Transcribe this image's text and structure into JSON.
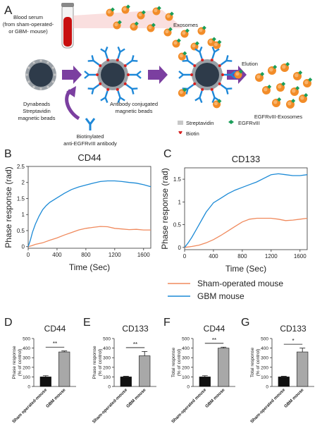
{
  "panel_a": {
    "letter": "A",
    "serum_label": [
      "Blood serum",
      "(from sham-operated-",
      "or GBM- mouse)"
    ],
    "exosomes_label": "Exosomes",
    "beads_label": [
      "Dynabeads",
      "Streptavidin",
      "magnetic beads"
    ],
    "antibody_label": [
      "Biotinylated",
      "anti-EGFRvIII antibody"
    ],
    "conjugated_label": [
      "Antibody conjugated",
      "magnetic beads"
    ],
    "elution_label": "Elution",
    "product_label": "EGFRvIII-Exosomes",
    "legend": {
      "streptavidin": "Streptavidin",
      "egfrviii": "EGFRvIII",
      "biotin": "Biotin"
    },
    "colors": {
      "bead": "#2e3b4a",
      "antibody": "#1e88d8",
      "exosome": "#f28c28",
      "egfr": "#1b9e5a",
      "arrow": "#7b3fa0",
      "biotin": "#d62020",
      "serum": "#c81010"
    }
  },
  "chart_data": [
    {
      "type": "line",
      "letter": "B",
      "title": "CD44",
      "xlabel": "Time (Sec)",
      "ylabel": "Phase response (rad)",
      "xlim": [
        0,
        1700
      ],
      "ylim": [
        -0.05,
        2.5
      ],
      "xticks": [
        0,
        400,
        800,
        1200,
        1600
      ],
      "yticks": [
        0,
        0.5,
        1,
        1.5,
        2,
        2.5
      ],
      "series": [
        {
          "name": "Sham-operated mouse",
          "color": "#f08a5d",
          "x": [
            0,
            50,
            100,
            200,
            300,
            400,
            500,
            600,
            700,
            800,
            900,
            1000,
            1100,
            1200,
            1300,
            1400,
            1500,
            1600,
            1700
          ],
          "y": [
            0,
            0.03,
            0.07,
            0.12,
            0.2,
            0.27,
            0.36,
            0.44,
            0.52,
            0.57,
            0.6,
            0.63,
            0.62,
            0.57,
            0.55,
            0.53,
            0.54,
            0.52,
            0.52
          ]
        },
        {
          "name": "GBM mouse",
          "color": "#1c8ad6",
          "x": [
            0,
            30,
            60,
            100,
            150,
            200,
            250,
            300,
            400,
            500,
            600,
            700,
            800,
            900,
            1000,
            1100,
            1200,
            1300,
            1400,
            1500,
            1600,
            1700
          ],
          "y": [
            0,
            0.2,
            0.45,
            0.7,
            0.95,
            1.15,
            1.28,
            1.38,
            1.52,
            1.66,
            1.78,
            1.86,
            1.92,
            1.98,
            2.03,
            2.05,
            2.05,
            2.03,
            2.0,
            1.98,
            1.93,
            1.87
          ]
        }
      ]
    },
    {
      "type": "line",
      "letter": "C",
      "title": "CD133",
      "xlabel": "Time (Sec)",
      "ylabel": "Phase response (rad)",
      "xlim": [
        0,
        1700
      ],
      "ylim": [
        -0.05,
        1.75
      ],
      "xticks": [
        0,
        400,
        800,
        1200,
        1600
      ],
      "yticks": [
        0,
        0.5,
        1,
        1.5
      ],
      "series": [
        {
          "name": "Sham-operated mouse",
          "color": "#f08a5d",
          "x": [
            0,
            100,
            200,
            300,
            400,
            500,
            600,
            700,
            800,
            900,
            1000,
            1100,
            1200,
            1300,
            1400,
            1500,
            1600,
            1700
          ],
          "y": [
            0,
            0.02,
            0.05,
            0.1,
            0.17,
            0.26,
            0.36,
            0.46,
            0.56,
            0.62,
            0.64,
            0.64,
            0.64,
            0.62,
            0.59,
            0.6,
            0.62,
            0.64
          ]
        },
        {
          "name": "GBM mouse",
          "color": "#1c8ad6",
          "x": [
            0,
            50,
            100,
            150,
            200,
            250,
            300,
            350,
            400,
            500,
            600,
            700,
            800,
            900,
            1000,
            1100,
            1200,
            1300,
            1400,
            1500,
            1600,
            1700
          ],
          "y": [
            0,
            0.1,
            0.22,
            0.36,
            0.5,
            0.64,
            0.78,
            0.88,
            0.98,
            1.08,
            1.18,
            1.26,
            1.32,
            1.38,
            1.44,
            1.52,
            1.6,
            1.62,
            1.6,
            1.58,
            1.58,
            1.6
          ]
        }
      ]
    },
    {
      "type": "bar",
      "letter": "D",
      "title": "CD44",
      "ylabel": "Phase response\n(% of control)",
      "categories": [
        "Sham operated-mouse",
        "GBM mouse"
      ],
      "values": [
        100,
        360
      ],
      "errors": [
        12,
        10
      ],
      "ylim": [
        0,
        500
      ],
      "yticks": [
        0,
        100,
        200,
        300,
        400,
        500
      ],
      "significance": "**",
      "colors": [
        "#111111",
        "#a8a8a8"
      ]
    },
    {
      "type": "bar",
      "letter": "E",
      "title": "CD133",
      "ylabel": "Phase response\n(% of control)",
      "categories": [
        "Sham-operated-mouse",
        "GBM mouse"
      ],
      "values": [
        100,
        320
      ],
      "errors": [
        6,
        45
      ],
      "ylim": [
        0,
        500
      ],
      "yticks": [
        0,
        100,
        200,
        300,
        400,
        500
      ],
      "significance": "**",
      "colors": [
        "#111111",
        "#a8a8a8"
      ]
    },
    {
      "type": "bar",
      "letter": "F",
      "title": "CD44",
      "ylabel": "Total response\n(% of control)",
      "categories": [
        "Sham-operated mouse",
        "GBM mouse"
      ],
      "values": [
        100,
        400
      ],
      "errors": [
        12,
        10
      ],
      "ylim": [
        0,
        500
      ],
      "yticks": [
        0,
        100,
        200,
        300,
        400,
        500
      ],
      "significance": "**",
      "colors": [
        "#111111",
        "#a8a8a8"
      ]
    },
    {
      "type": "bar",
      "letter": "G",
      "title": "CD133",
      "ylabel": "Total response\n(% of control)",
      "categories": [
        "Sham-operated mouse",
        "GBM mouse"
      ],
      "values": [
        100,
        360
      ],
      "errors": [
        6,
        40
      ],
      "ylim": [
        0,
        500
      ],
      "yticks": [
        0,
        100,
        200,
        300,
        400,
        500
      ],
      "significance": "*",
      "colors": [
        "#111111",
        "#a8a8a8"
      ]
    }
  ],
  "legend_bc": [
    {
      "label": "Sham-operated mouse",
      "color": "#f08a5d"
    },
    {
      "label": "GBM mouse",
      "color": "#1c8ad6"
    }
  ]
}
